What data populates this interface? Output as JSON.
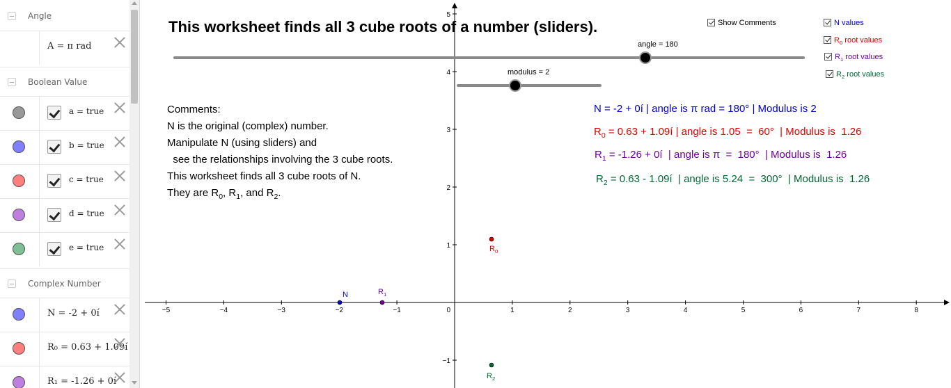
{
  "algebra": {
    "categories": {
      "angle": "Angle",
      "boolean": "Boolean Value",
      "complex": "Complex Number"
    },
    "angle_item": "A = π rad",
    "booleans": [
      {
        "text": "a = true",
        "color": "#999999"
      },
      {
        "text": "b = true",
        "color": "#8080ff"
      },
      {
        "text": "c = true",
        "color": "#ff7f7f"
      },
      {
        "text": "d = true",
        "color": "#bf7fdf"
      },
      {
        "text": "e = true",
        "color": "#7fbf95"
      }
    ],
    "complex": [
      {
        "text": "N = -2 + 0í",
        "color": "#8080ff"
      },
      {
        "text": "R₀ = 0.63 + 1.09í",
        "color": "#ff7f7f"
      },
      {
        "text": "R₁ = -1.26 + 0í",
        "color": "#bf7fdf"
      }
    ]
  },
  "graphics": {
    "title": "This worksheet finds all 3 cube roots of a number (sliders).",
    "sliders": {
      "angle_label": "angle = 180",
      "modulus_label": "modulus = 2"
    },
    "comments": {
      "heading": "Comments:",
      "lines": [
        "N is the original (complex) number.",
        "Manipulate N (using sliders) and",
        "  see the relationships involving the 3 cube roots.",
        "This worksheet finds all 3 cube roots of N."
      ],
      "last_prefix": "They are R",
      "last_sub0": "0",
      "last_mid1": ", R",
      "last_sub1": "1",
      "last_mid2": ", and R",
      "last_sub2": "2",
      "last_end": "."
    },
    "info": {
      "n_line": "N = -2 + 0í  | angle is π rad =  180°  | Modulus is 2",
      "r0_letter": "R",
      "r0_sub": "0",
      "r0_line": " = 0.63 + 1.09í | angle is 1.05  =  60°  | Modulus is  1.26",
      "r1_letter": "R",
      "r1_sub": "1",
      "r1_line": " = -1.26 + 0í  | angle is π  =  180°  | Modulus is  1.26",
      "r2_letter": "R",
      "r2_sub": "2",
      "r2_line": " = 0.63 - 1.09í  | angle is 5.24  =  300°  | Modulus is  1.26"
    },
    "checkboxes": {
      "show_comments": "Show Comments",
      "n_values": "N values",
      "r0_letter": "R",
      "r0_sub": "0",
      "r0_text": " root values",
      "r1_letter": "R",
      "r1_sub": "1",
      "r1_text": " root values",
      "r2_letter": "R",
      "r2_sub": "2",
      "r2_text": " root values"
    },
    "points": {
      "n_label": "N",
      "r0_letter": "R",
      "r0_sub": "0",
      "r1_letter": "R",
      "r1_sub": "1",
      "r2_letter": "R",
      "r2_sub": "2"
    },
    "axis": {
      "x_ticks": [
        "−5",
        "−4",
        "−3",
        "−2",
        "−1",
        "0",
        "1",
        "2",
        "3",
        "4",
        "5",
        "6",
        "7",
        "8"
      ],
      "y_ticks": [
        "5",
        "4",
        "3",
        "2",
        "1",
        "−1"
      ]
    },
    "colors": {
      "n": "#0000cc",
      "r0": "#e00000",
      "r1": "#6f00a0",
      "r2": "#006633"
    }
  }
}
